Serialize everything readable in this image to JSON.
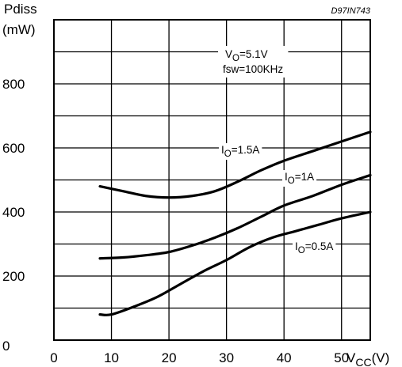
{
  "doc_code": "D97IN743",
  "chart_data": {
    "type": "line",
    "y_title_line1": "Pdiss",
    "y_title_line2": "(mW)",
    "x_title": {
      "main": "V",
      "sub": "CC",
      "unit": "(V)"
    },
    "xlim": [
      0,
      55
    ],
    "ylim": [
      0,
      1000
    ],
    "x_ticks": [
      0,
      10,
      20,
      30,
      40,
      50
    ],
    "y_ticks": [
      0,
      200,
      400,
      600,
      800
    ],
    "x_grid": [
      10,
      20,
      30,
      40,
      50
    ],
    "y_grid": [
      100,
      200,
      300,
      400,
      500,
      600,
      700,
      800,
      900
    ],
    "grid": true,
    "conditions": {
      "line1": {
        "main": "V",
        "sub": "O",
        "rest": "=5.1V"
      },
      "line2": "fsw=100KHz"
    },
    "series": [
      {
        "label": {
          "main": "I",
          "sub": "O",
          "rest": "=1.5A"
        },
        "x": [
          8,
          12,
          16,
          20,
          24,
          28,
          32,
          36,
          40,
          45,
          50,
          55
        ],
        "y": [
          480,
          465,
          450,
          445,
          450,
          465,
          495,
          530,
          560,
          590,
          620,
          650
        ]
      },
      {
        "label": {
          "main": "I",
          "sub": "O",
          "rest": "=1A"
        },
        "x": [
          8,
          12,
          16,
          20,
          24,
          28,
          32,
          36,
          40,
          45,
          50,
          55
        ],
        "y": [
          255,
          258,
          265,
          275,
          295,
          320,
          350,
          385,
          420,
          450,
          485,
          515
        ]
      },
      {
        "label": {
          "main": "I",
          "sub": "O",
          "rest": "=0.5A"
        },
        "x": [
          8,
          10,
          14,
          18,
          22,
          26,
          30,
          34,
          38,
          42,
          46,
          50,
          55
        ],
        "y": [
          80,
          80,
          105,
          135,
          175,
          215,
          250,
          290,
          320,
          340,
          360,
          380,
          400
        ]
      }
    ]
  }
}
